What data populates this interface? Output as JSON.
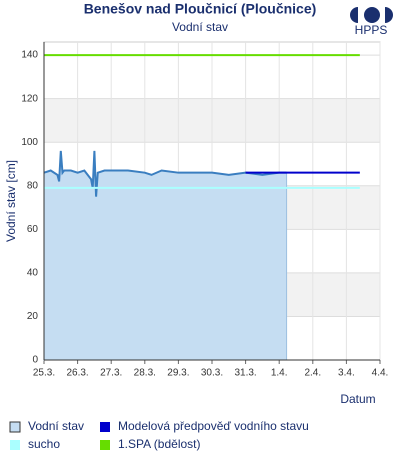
{
  "logo": "HPPS",
  "chart_data": {
    "type": "line",
    "title": "Benešov nad Ploučnicí (Ploučnice)",
    "subtitle": "Vodní stav",
    "ylabel": "Vodní stav [cm]",
    "xlabel": "Datum",
    "xlim": [
      0,
      10
    ],
    "ylim": [
      0,
      146
    ],
    "xticks": [
      {
        "value": 0,
        "label": "25.3."
      },
      {
        "value": 1,
        "label": "26.3."
      },
      {
        "value": 2,
        "label": "27.3."
      },
      {
        "value": 3,
        "label": "28.3."
      },
      {
        "value": 4,
        "label": "29.3."
      },
      {
        "value": 5,
        "label": "30.3."
      },
      {
        "value": 6,
        "label": "31.3."
      },
      {
        "value": 7,
        "label": "1.4."
      },
      {
        "value": 8,
        "label": "2.4."
      },
      {
        "value": 9,
        "label": "3.4."
      },
      {
        "value": 10,
        "label": "4.4."
      }
    ],
    "yticks": [
      0,
      20,
      40,
      60,
      80,
      100,
      120,
      140
    ],
    "grid": true,
    "series": [
      {
        "name": "Vodní stav",
        "color": "#3a7ec0",
        "fill_color": "#c5ddf2",
        "x": [
          0,
          0.2,
          0.4,
          0.45,
          0.5,
          0.55,
          0.6,
          0.8,
          1.0,
          1.2,
          1.4,
          1.45,
          1.5,
          1.55,
          1.6,
          1.8,
          2.0,
          2.5,
          3.0,
          3.2,
          3.5,
          4.0,
          4.5,
          5.0,
          5.5,
          6.0,
          6.5,
          7.0,
          7.22
        ],
        "values": [
          86,
          87,
          85,
          82,
          96,
          86,
          87,
          87,
          86,
          87,
          83,
          79,
          96,
          75,
          86,
          87,
          87,
          87,
          86,
          85,
          87,
          86,
          86,
          86,
          85,
          86,
          85,
          86,
          86
        ]
      },
      {
        "name": "sucho",
        "color": "#aaffff",
        "x": [
          0,
          9.4
        ],
        "values": [
          79,
          79
        ]
      },
      {
        "name": "Modelová předpověď vodního stavu",
        "color": "#0000cc",
        "x": [
          6,
          9.4
        ],
        "values": [
          86,
          86
        ]
      },
      {
        "name": "1.SPA (bdělost)",
        "color": "#66dd00",
        "x": [
          0,
          9.4
        ],
        "values": [
          140,
          140
        ]
      }
    ]
  }
}
